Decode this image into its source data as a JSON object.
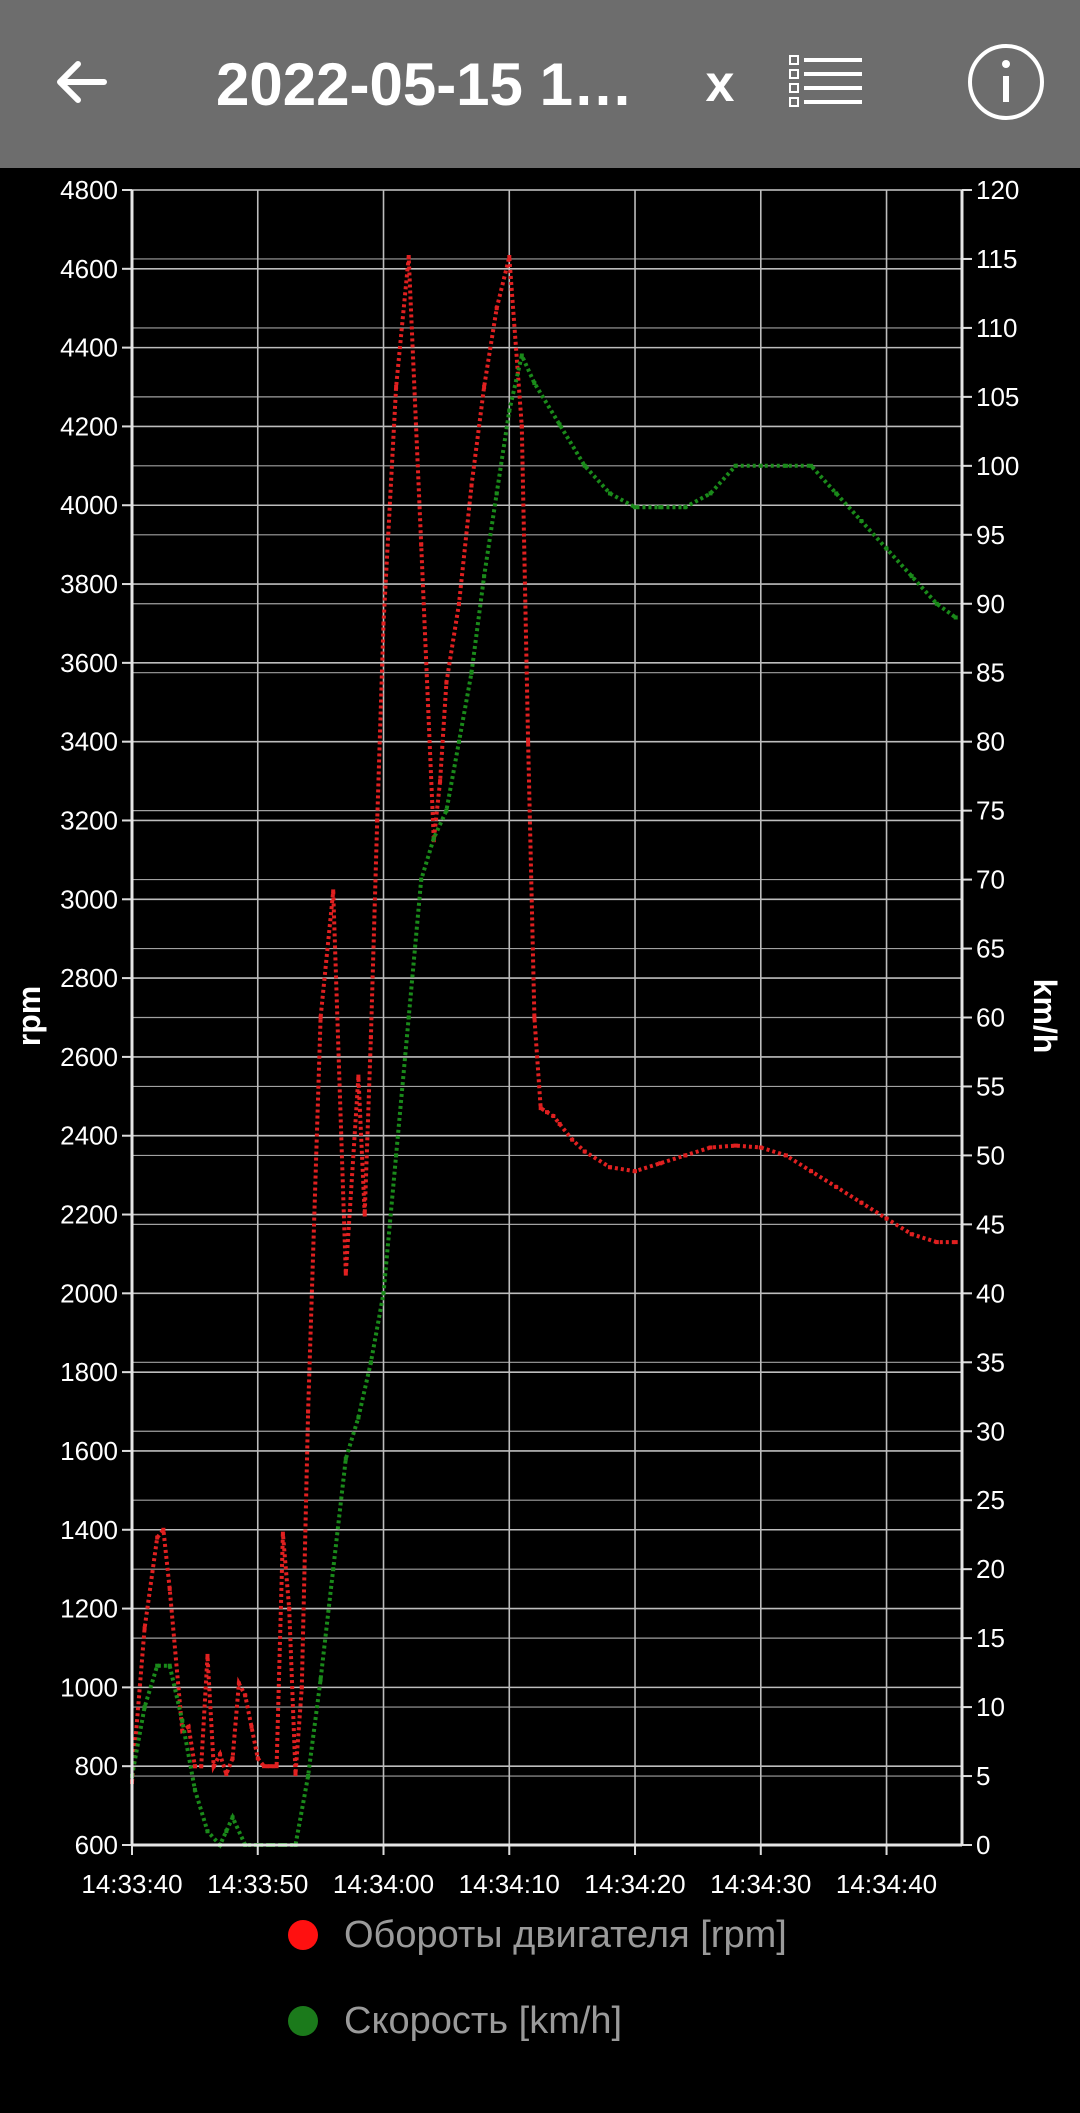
{
  "appbar": {
    "title": "2022-05-15 1…",
    "close_label": "x",
    "icons": {
      "back": "arrow-left-icon",
      "menu": "list-icon",
      "info": "info-circle-icon"
    }
  },
  "colors": {
    "appbar_bg": "#6d6d6d",
    "background": "#000000",
    "rpm": "#e02020",
    "speed": "#1a8a1a",
    "grid": "#bdbdbd"
  },
  "chart_data": {
    "type": "scatter",
    "grid": true,
    "legend_position": "bottom",
    "x_ticks": [
      "14:33:40",
      "14:33:50",
      "14:34:00",
      "14:34:10",
      "14:34:20",
      "14:34:30",
      "14:34:40"
    ],
    "x_range_seconds": [
      0,
      66
    ],
    "y_left": {
      "label": "rpm",
      "range": [
        600,
        4800
      ],
      "ticks": [
        600,
        800,
        1000,
        1200,
        1400,
        1600,
        1800,
        2000,
        2200,
        2400,
        2600,
        2800,
        3000,
        3200,
        3400,
        3600,
        3800,
        4000,
        4200,
        4400,
        4600,
        4800
      ]
    },
    "y_right": {
      "label": "km/h",
      "range": [
        0,
        120
      ],
      "ticks": [
        0,
        5,
        10,
        15,
        20,
        25,
        30,
        35,
        40,
        45,
        50,
        55,
        60,
        65,
        70,
        75,
        80,
        85,
        90,
        95,
        100,
        105,
        110,
        115,
        120
      ]
    },
    "series": [
      {
        "name": "Обороты двигателя [rpm]",
        "axis": "left",
        "color": "#e02020",
        "x": [
          0,
          1,
          2,
          2.5,
          3,
          4,
          4.5,
          5,
          5.5,
          6,
          6.5,
          7,
          7.5,
          8,
          8.5,
          9,
          9.5,
          10,
          10.5,
          11,
          11.5,
          12,
          12.5,
          13,
          13.5,
          14,
          15,
          16,
          17,
          18,
          18.5,
          19,
          19.5,
          20,
          21,
          22,
          23,
          24,
          24.5,
          25,
          26,
          27,
          28,
          29,
          30,
          31,
          31.5,
          32,
          32.5,
          33,
          33.5,
          34,
          35,
          36,
          38,
          40,
          42,
          44,
          46,
          48,
          50,
          52,
          54,
          56,
          58,
          60,
          62,
          64,
          65.5
        ],
        "y": [
          760,
          1150,
          1380,
          1400,
          1250,
          890,
          900,
          800,
          800,
          1080,
          800,
          830,
          780,
          820,
          1010,
          980,
          900,
          820,
          800,
          800,
          800,
          1390,
          1200,
          780,
          1000,
          1700,
          2700,
          3020,
          2050,
          2550,
          2200,
          2650,
          3200,
          3700,
          4300,
          4630,
          3900,
          3150,
          3300,
          3550,
          3750,
          4050,
          4300,
          4500,
          4630,
          4200,
          3400,
          2700,
          2470,
          2460,
          2450,
          2430,
          2390,
          2360,
          2320,
          2310,
          2330,
          2350,
          2370,
          2375,
          2370,
          2350,
          2310,
          2270,
          2230,
          2190,
          2150,
          2130,
          2130
        ],
        "point_style": "dense-dotted"
      },
      {
        "name": "Скорость [km/h]",
        "axis": "right",
        "color": "#1a8a1a",
        "x": [
          0,
          1,
          2,
          3,
          4,
          5,
          6,
          7,
          7.5,
          8,
          9,
          10,
          11,
          12,
          13,
          14,
          15,
          16,
          17,
          18,
          19,
          20,
          21,
          22,
          23,
          24,
          25,
          26,
          27,
          28,
          29,
          30,
          31,
          32,
          34,
          36,
          38,
          40,
          42,
          44,
          46,
          48,
          50,
          52,
          54,
          56,
          58,
          60,
          62,
          64,
          65.5
        ],
        "y": [
          5,
          10,
          13,
          13,
          9,
          4,
          1,
          0,
          1,
          2,
          0,
          0,
          0,
          0,
          0,
          5,
          12,
          20,
          28,
          31,
          35,
          40,
          50,
          60,
          70,
          73,
          75,
          80,
          85,
          92,
          98,
          104,
          108,
          106,
          103,
          100,
          98,
          97,
          97,
          97,
          98,
          100,
          100,
          100,
          100,
          98,
          96,
          94,
          92,
          90,
          89
        ],
        "point_style": "dense-dotted"
      }
    ]
  }
}
